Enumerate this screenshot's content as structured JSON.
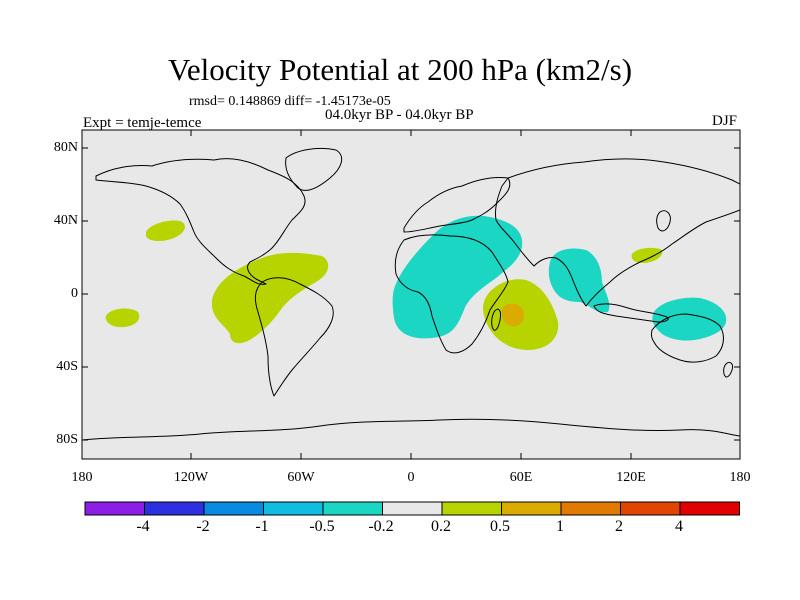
{
  "title": "Velocity Potential at 200 hPa (km2/s)",
  "stats": "rmsd= 0.148869 diff= -1.45173e-05",
  "period": "04.0kyr BP - 04.0kyr BP",
  "experiment": "Expt = temje-temce",
  "season": "DJF",
  "map": {
    "lat_labels": [
      "80N",
      "40N",
      "0",
      "40S",
      "80S"
    ],
    "lon_labels": [
      "180",
      "120W",
      "60W",
      "0",
      "60E",
      "120E",
      "180"
    ],
    "background_color": "#e8e8e8",
    "anomaly_regions": [
      {
        "name": "north-pacific-positive",
        "level": "0.2 to 0.5",
        "color": "#b8d400"
      },
      {
        "name": "south-pacific-positive",
        "level": "0.2 to 0.5",
        "color": "#b8d400"
      },
      {
        "name": "tropical-americas-positive",
        "level": "0.2 to 0.5",
        "color": "#b8d400"
      },
      {
        "name": "africa-middle-east-negative",
        "level": "-0.5 to -0.2",
        "color": "#1ad6c2"
      },
      {
        "name": "madagascar-positive",
        "level": "0.2 to 0.5",
        "color": "#b8d400"
      },
      {
        "name": "madagascar-core-positive",
        "level": "0.5 to 1",
        "color": "#dbab00"
      },
      {
        "name": "indian-ocean-negative",
        "level": "-0.5 to -0.2",
        "color": "#1ad6c2"
      },
      {
        "name": "philippines-positive",
        "level": "0.2 to 0.5",
        "color": "#b8d400"
      },
      {
        "name": "australia-negative",
        "level": "-0.5 to -0.2",
        "color": "#1ad6c2"
      }
    ]
  },
  "colorbar": {
    "colors": [
      "#8c1ee6",
      "#2c30e0",
      "#0a8ae0",
      "#10bde0",
      "#1ad6c2",
      "#e8e8e8",
      "#b8d400",
      "#dbab00",
      "#e07a00",
      "#e04600",
      "#e00000"
    ],
    "labels": [
      "-4",
      "-2",
      "-1",
      "-0.5",
      "-0.2",
      "0.2",
      "0.5",
      "1",
      "2",
      "4"
    ]
  }
}
